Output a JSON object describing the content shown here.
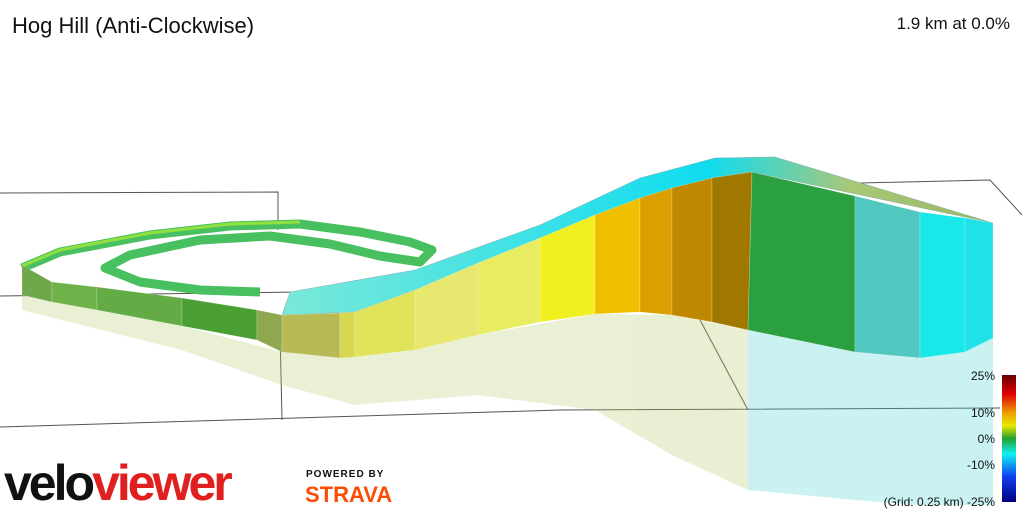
{
  "header": {
    "title": "Hog Hill (Anti-Clockwise)",
    "summary": "1.9 km at 0.0%"
  },
  "legend": {
    "labels": [
      "25%",
      "10%",
      "0%",
      "-10%",
      "(Grid: 0.25 km) -25%"
    ]
  },
  "logo": {
    "primary": "velo",
    "secondary": "viewer"
  },
  "strava": {
    "powered": "POWERED BY",
    "name": "STRAVA"
  }
}
